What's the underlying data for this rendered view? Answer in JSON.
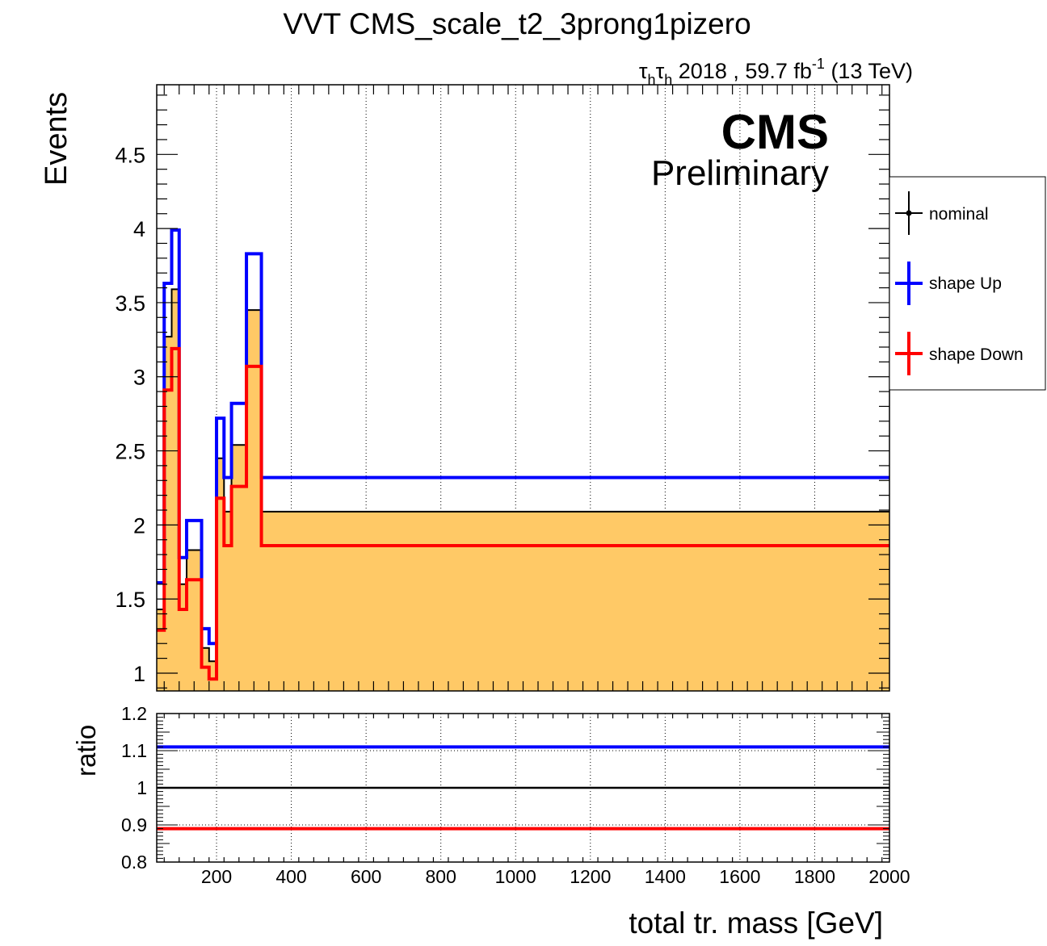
{
  "chart_data": {
    "type": "line",
    "title": "VVT CMS_scale_t2_3prong1pizero",
    "subtitle": {
      "channel_tau": "τ",
      "channel_sub": "h",
      "text": "2018 , 59.7 fb",
      "superscript": "-1",
      "energy": "(13 TeV)"
    },
    "cms_label": "CMS",
    "cms_sublabel": "Preliminary",
    "xlabel": "total tr. mass [GeV]",
    "ylabel": "Events",
    "ratio_ylabel": "ratio",
    "xlim": [
      40,
      2000
    ],
    "ylim": [
      0.88,
      4.97
    ],
    "ratio_ylim": [
      0.8,
      1.2
    ],
    "x_ticks": [
      "200",
      "400",
      "600",
      "800",
      "1000",
      "1200",
      "1400",
      "1600",
      "1800",
      "2000"
    ],
    "y_ticks": [
      "1",
      "1.5",
      "2",
      "2.5",
      "3",
      "3.5",
      "4",
      "4.5"
    ],
    "ratio_ticks": [
      "0.8",
      "0.9",
      "1",
      "1.1",
      "1.2"
    ],
    "grid_x": true,
    "legend_position": "right",
    "bin_edges": [
      40,
      60,
      80,
      100,
      120,
      140,
      160,
      180,
      200,
      220,
      240,
      260,
      280,
      320,
      400,
      2000
    ],
    "series": [
      {
        "name": "nominal",
        "color": "#000000",
        "fill": "#ffc966",
        "values": [
          1.43,
          3.27,
          3.59,
          1.6,
          1.83,
          1.83,
          1.17,
          1.08,
          2.45,
          2.09,
          2.54,
          2.54,
          3.45,
          2.09,
          2.09
        ]
      },
      {
        "name": "shape Up",
        "color": "#0000ff",
        "values": [
          1.61,
          3.63,
          3.99,
          1.78,
          2.03,
          2.03,
          1.3,
          1.2,
          2.72,
          2.32,
          2.82,
          2.82,
          3.83,
          2.32,
          2.32
        ]
      },
      {
        "name": "shape Down",
        "color": "#ff0000",
        "values": [
          1.29,
          2.91,
          3.19,
          1.43,
          1.63,
          1.63,
          1.04,
          0.96,
          2.18,
          1.86,
          2.26,
          2.26,
          3.07,
          1.86,
          1.86
        ]
      }
    ],
    "ratio_series": [
      {
        "name": "shape Up",
        "color": "#0000ff",
        "value": 1.11
      },
      {
        "name": "nominal",
        "color": "#000000",
        "value": 1.0
      },
      {
        "name": "shape Down",
        "color": "#ff0000",
        "value": 0.89
      }
    ]
  }
}
